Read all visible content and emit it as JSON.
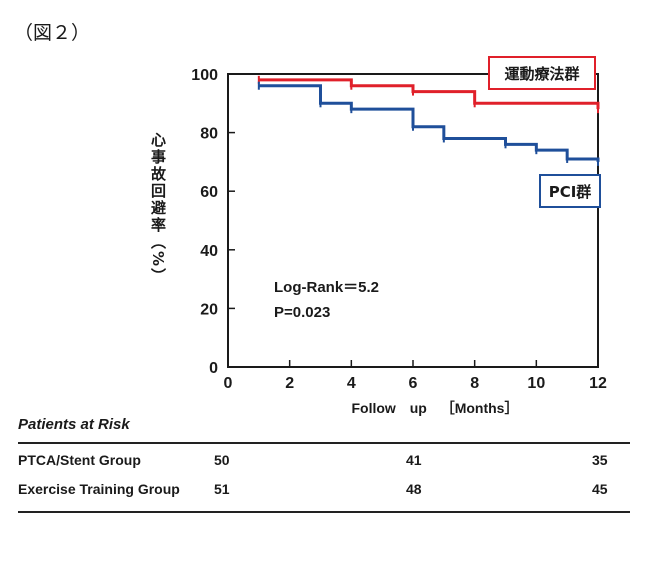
{
  "figure_label": "（図２）",
  "chart_data": {
    "type": "line",
    "step": true,
    "ylabel": "心事故回避率（%）",
    "xlabel": "Follow up ［Months］",
    "xlim": [
      0,
      12
    ],
    "ylim": [
      0,
      100
    ],
    "xticks": [
      0,
      2,
      4,
      6,
      8,
      10,
      12
    ],
    "yticks": [
      0,
      20,
      40,
      60,
      80,
      100
    ],
    "grid": false,
    "series": [
      {
        "name": "運動療法群",
        "color": "#e0202a",
        "x": [
          1,
          4,
          6,
          8,
          12
        ],
        "y": [
          98,
          96,
          94,
          90,
          88
        ]
      },
      {
        "name": "PCI群",
        "color": "#1f4f9a",
        "x": [
          1,
          3,
          4,
          6,
          7,
          9,
          10,
          11,
          12
        ],
        "y": [
          96,
          90,
          88,
          82,
          78,
          76,
          74,
          71,
          70
        ]
      }
    ],
    "annotations": [
      "Log-Rank＝5.2",
      "P=0.023"
    ]
  },
  "risk_table": {
    "title": "Patients at Risk",
    "rows": [
      {
        "group": "PTCA/Stent Group",
        "values": [
          "50",
          "41",
          "35"
        ]
      },
      {
        "group": "Exercise Training Group",
        "values": [
          "51",
          "48",
          "45"
        ]
      }
    ]
  }
}
